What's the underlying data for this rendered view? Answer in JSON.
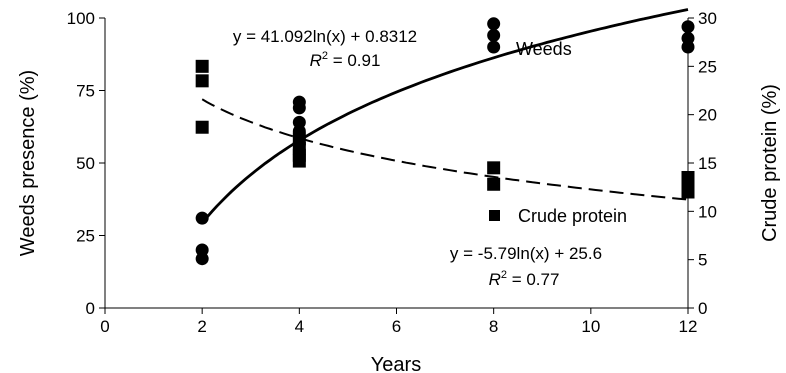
{
  "chart_data": {
    "type": "scatter",
    "xlabel": "Years",
    "ylabel_left": "Weeds presence (%)",
    "ylabel_right": "Crude protein (%)",
    "xlim": [
      0,
      12
    ],
    "x_ticks": [
      0,
      2,
      4,
      6,
      8,
      10,
      12
    ],
    "ylim_left": [
      0,
      100
    ],
    "y_ticks_left": [
      0,
      25,
      50,
      75,
      100
    ],
    "ylim_right": [
      0,
      30
    ],
    "y_ticks_right": [
      0,
      5,
      10,
      15,
      20,
      25,
      30
    ],
    "grid": false,
    "series": [
      {
        "name": "Weeds",
        "axis": "left",
        "marker": "circle",
        "points": [
          [
            2,
            31
          ],
          [
            2,
            20
          ],
          [
            2,
            17
          ],
          [
            4,
            71
          ],
          [
            4,
            69
          ],
          [
            4,
            64
          ],
          [
            4,
            61
          ],
          [
            4,
            59
          ],
          [
            8,
            98
          ],
          [
            8,
            94
          ],
          [
            8,
            90
          ],
          [
            12,
            97
          ],
          [
            12,
            93
          ],
          [
            12,
            90
          ]
        ],
        "trend": {
          "equation": "y = 41.092ln(x) + 0.8312",
          "r2_prefix": "R",
          "r2_sup": "2",
          "r2_value": " = 0.91",
          "a": 41.092,
          "b": 0.8312,
          "style": "solid"
        }
      },
      {
        "name": "Crude protein",
        "axis": "right",
        "marker": "square",
        "points": [
          [
            2,
            25
          ],
          [
            2,
            23.5
          ],
          [
            2,
            18.7
          ],
          [
            4,
            17.5
          ],
          [
            4,
            16.5
          ],
          [
            4,
            15.8
          ],
          [
            4,
            15.2
          ],
          [
            8,
            14.5
          ],
          [
            8,
            12.8
          ],
          [
            12,
            13.5
          ],
          [
            12,
            12.7
          ],
          [
            12,
            12
          ]
        ],
        "trend": {
          "equation": "y = -5.79ln(x) + 25.6",
          "r2_prefix": "R",
          "r2_sup": "2",
          "r2_value": " = 0.77",
          "a": -5.79,
          "b": 25.6,
          "style": "dashed"
        }
      }
    ]
  }
}
